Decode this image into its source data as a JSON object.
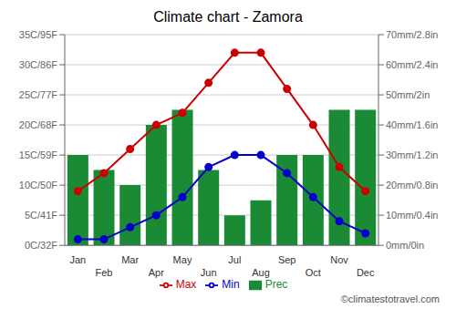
{
  "chart_data": {
    "type": "bar",
    "title": "Climate chart - Zamora",
    "categories": [
      "Jan",
      "Feb",
      "Mar",
      "Apr",
      "May",
      "Jun",
      "Jul",
      "Aug",
      "Sep",
      "Oct",
      "Nov",
      "Dec"
    ],
    "series": [
      {
        "name": "Prec",
        "type": "bar",
        "axis": "y2",
        "color": "#1a8a35",
        "values": [
          30,
          25,
          20,
          40,
          45,
          25,
          10,
          15,
          30,
          30,
          45,
          45
        ]
      },
      {
        "name": "Min",
        "type": "line",
        "color": "#0000cc",
        "marker": "circle",
        "values": [
          1,
          1,
          3,
          5,
          8,
          13,
          15,
          15,
          12,
          8,
          4,
          2
        ]
      },
      {
        "name": "Max",
        "type": "line",
        "color": "#cc0000",
        "marker": "circle",
        "values": [
          9,
          12,
          16,
          20,
          22,
          27,
          32,
          32,
          26,
          20,
          13,
          9
        ]
      }
    ],
    "ylim": [
      0,
      35
    ],
    "yticks": [
      {
        "value": 0,
        "label": "0C/32F"
      },
      {
        "value": 5,
        "label": "5C/41F"
      },
      {
        "value": 10,
        "label": "10C/50F"
      },
      {
        "value": 15,
        "label": "15C/59F"
      },
      {
        "value": 20,
        "label": "20C/68F"
      },
      {
        "value": 25,
        "label": "25C/77F"
      },
      {
        "value": 30,
        "label": "30C/86F"
      },
      {
        "value": 35,
        "label": "35C/95F"
      }
    ],
    "y2lim": [
      0,
      70
    ],
    "y2ticks": [
      {
        "value": 0,
        "label": "0mm/0in"
      },
      {
        "value": 10,
        "label": "10mm/0.4in"
      },
      {
        "value": 20,
        "label": "20mm/0.8in"
      },
      {
        "value": 30,
        "label": "30mm/1.2in"
      },
      {
        "value": 40,
        "label": "40mm/1.6in"
      },
      {
        "value": 50,
        "label": "50mm/2in"
      },
      {
        "value": 60,
        "label": "60mm/2.4in"
      },
      {
        "value": 70,
        "label": "70mm/2.8in"
      }
    ],
    "grid": true,
    "legend": "bottom",
    "annotations": [
      "©climatestotravel.com"
    ]
  }
}
